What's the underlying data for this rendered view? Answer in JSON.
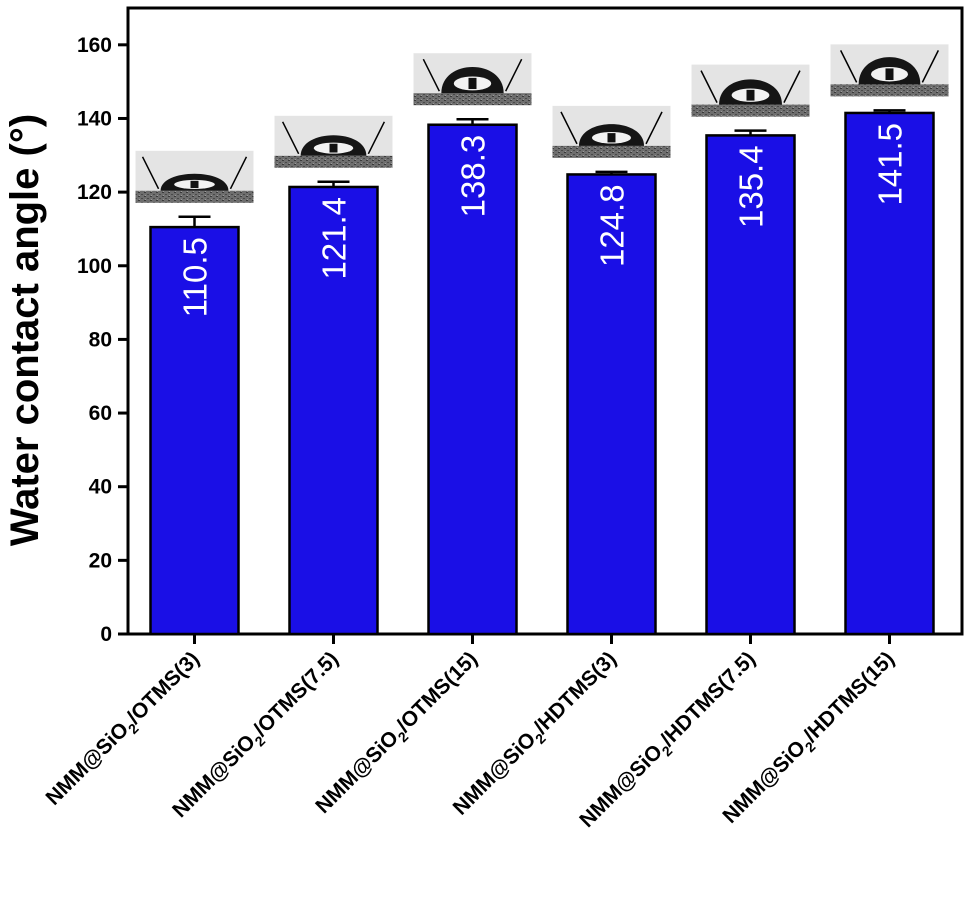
{
  "chart_data": {
    "type": "bar",
    "ylabel": "Water contact angle (°)",
    "xlabel": "",
    "ylim": [
      0,
      170
    ],
    "yticks": [
      0,
      20,
      40,
      60,
      80,
      100,
      120,
      140,
      160
    ],
    "categories": [
      {
        "base": "NMM@SiO",
        "sub": "2",
        "rest": "/OTMS(3)"
      },
      {
        "base": "NMM@SiO",
        "sub": "2",
        "rest": "/OTMS(7.5)"
      },
      {
        "base": "NMM@SiO",
        "sub": "2",
        "rest": "/OTMS(15)"
      },
      {
        "base": "NMM@SiO",
        "sub": "2",
        "rest": "/HDTMS(3)"
      },
      {
        "base": "NMM@SiO",
        "sub": "2",
        "rest": "/HDTMS(7.5)"
      },
      {
        "base": "NMM@SiO",
        "sub": "2",
        "rest": "/HDTMS(15)"
      }
    ],
    "values": [
      110.5,
      121.4,
      138.3,
      124.8,
      135.4,
      141.5
    ],
    "value_labels": [
      "110.5",
      "121.4",
      "138.3",
      "124.8",
      "135.4",
      "141.5"
    ],
    "errors": [
      2.8,
      1.4,
      1.5,
      0.7,
      1.3,
      0.7
    ],
    "bar_color": "#1a0fe6",
    "legend": "none",
    "grid": false,
    "inset_images": "droplet photos above each bar"
  }
}
